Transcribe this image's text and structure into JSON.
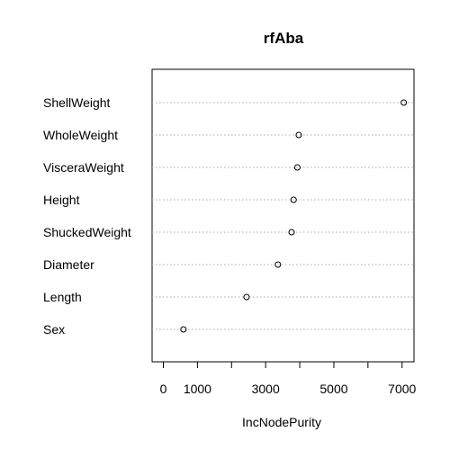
{
  "chart_data": {
    "type": "scatter",
    "title": "rfAba",
    "xlabel": "IncNodePurity",
    "ylabel": "",
    "categories": [
      "ShellWeight",
      "WholeWeight",
      "VisceraWeight",
      "Height",
      "ShuckedWeight",
      "Diameter",
      "Length",
      "Sex"
    ],
    "values": [
      7050,
      3970,
      3930,
      3820,
      3760,
      3360,
      2440,
      590
    ],
    "xlim": [
      -330,
      7350
    ],
    "x_ticks": [
      0,
      1000,
      2000,
      3000,
      4000,
      5000,
      6000,
      7000
    ],
    "x_tick_labels": [
      "0",
      "1000",
      "",
      "3000",
      "",
      "5000",
      "",
      "7000"
    ],
    "grid": "dotted horizontal per category"
  }
}
